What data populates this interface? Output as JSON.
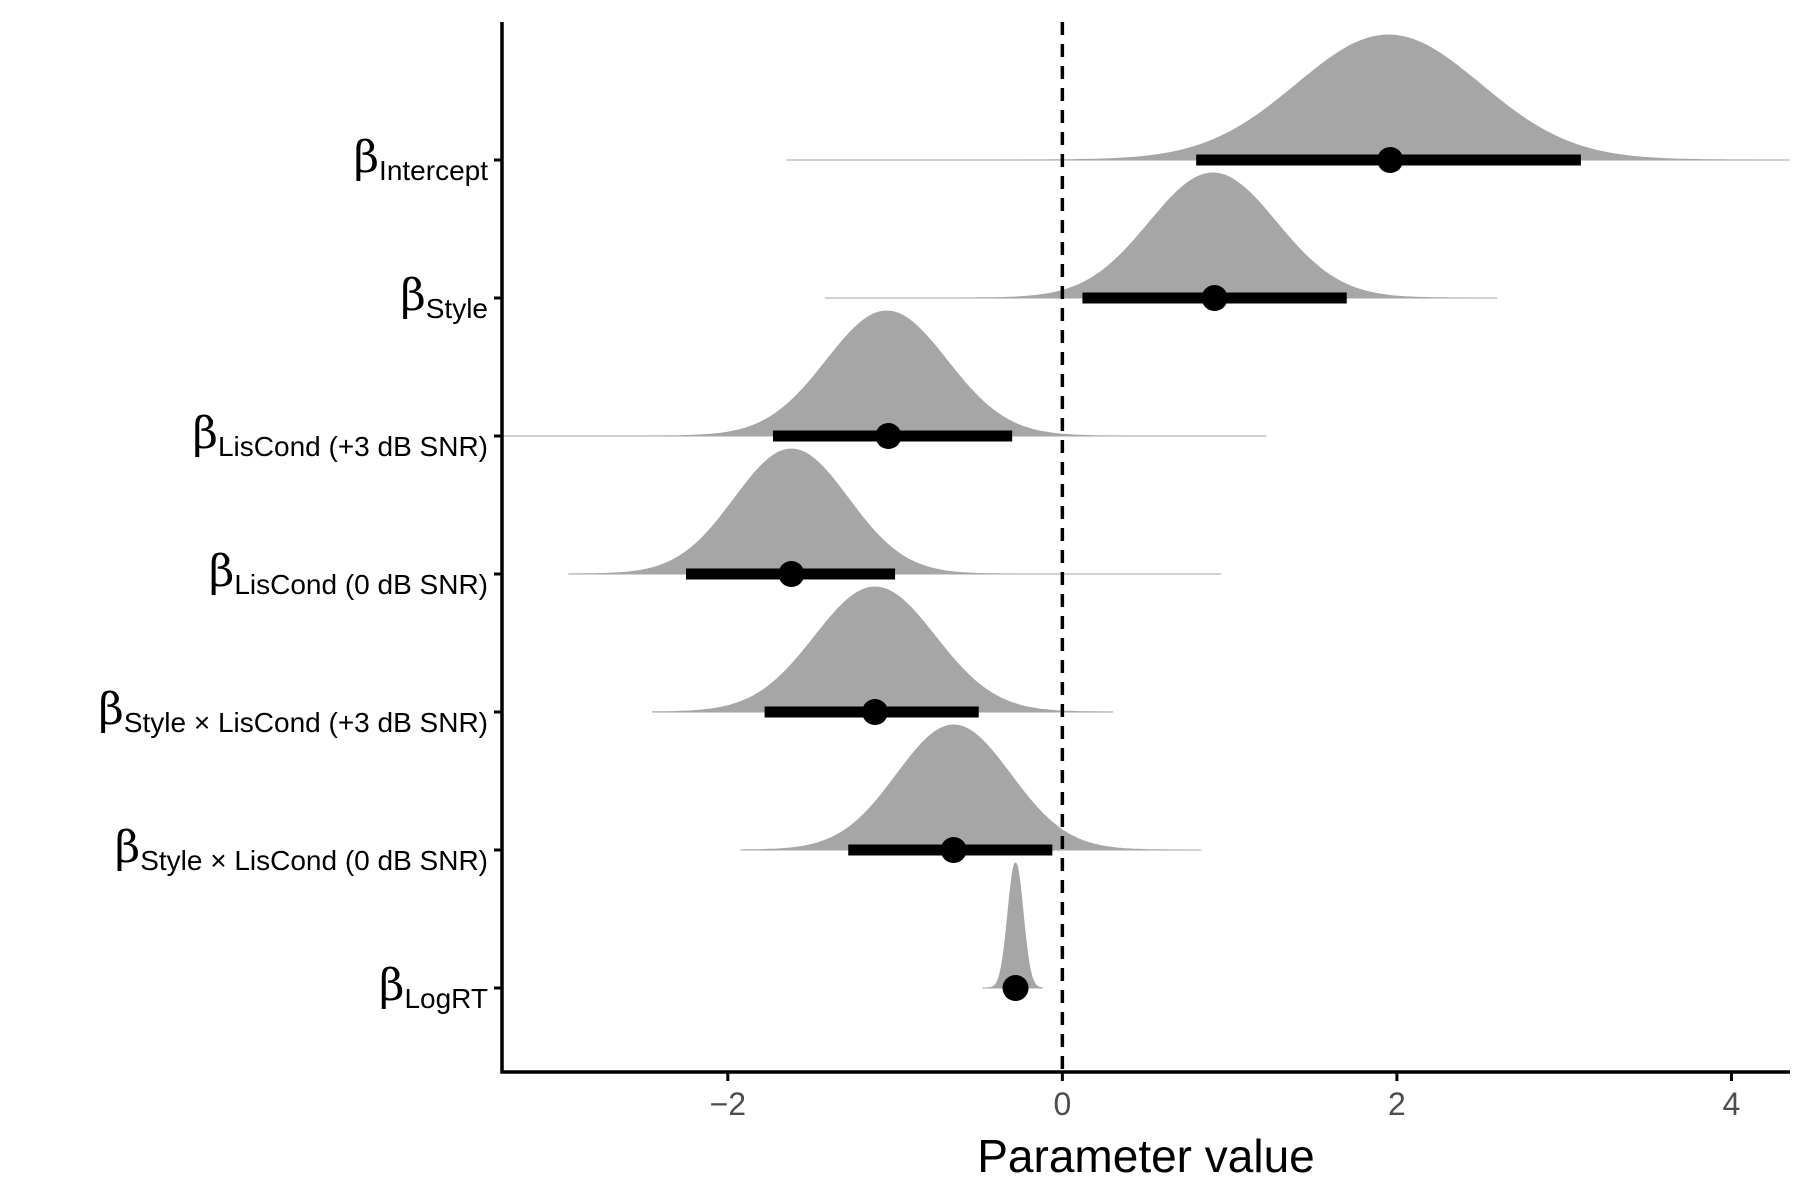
{
  "chart_data": {
    "type": "density-interval",
    "xlabel": "Parameter value",
    "xlim": [
      -3.35,
      4.35
    ],
    "xticks": [
      -2,
      0,
      2,
      4
    ],
    "xtick_labels": [
      "−2",
      "0",
      "2",
      "4"
    ],
    "reference_line": 0,
    "grid": false,
    "colors": {
      "density": "#a6a6a6",
      "interval": "#000000",
      "axis": "#000000"
    },
    "parameters": [
      {
        "symbol": "β",
        "subscript": "Intercept",
        "mean": 1.95,
        "sd": 0.55,
        "median": 1.96,
        "ci_low": 0.8,
        "ci_high": 3.1,
        "range_low": -1.65,
        "range_high": 4.35
      },
      {
        "symbol": "β",
        "subscript": "Style",
        "mean": 0.9,
        "sd": 0.38,
        "median": 0.91,
        "ci_low": 0.12,
        "ci_high": 1.7,
        "range_low": -1.42,
        "range_high": 2.6
      },
      {
        "symbol": "β",
        "subscript": "LisCond (+3 dB SNR)",
        "mean": -1.05,
        "sd": 0.36,
        "median": -1.04,
        "ci_low": -1.73,
        "ci_high": -0.3,
        "range_low": -3.35,
        "range_high": 1.22
      },
      {
        "symbol": "β",
        "subscript": "LisCond (0 dB SNR)",
        "mean": -1.62,
        "sd": 0.34,
        "median": -1.62,
        "ci_low": -2.25,
        "ci_high": -1.0,
        "range_low": -2.95,
        "range_high": 0.95
      },
      {
        "symbol": "β",
        "subscript": "Style × LisCond (+3 dB SNR)",
        "mean": -1.12,
        "sd": 0.36,
        "median": -1.12,
        "ci_low": -1.78,
        "ci_high": -0.5,
        "range_low": -2.45,
        "range_high": 0.3
      },
      {
        "symbol": "β",
        "subscript": "Style × LisCond (0 dB SNR)",
        "mean": -0.65,
        "sd": 0.34,
        "median": -0.65,
        "ci_low": -1.28,
        "ci_high": -0.06,
        "range_low": -1.92,
        "range_high": 0.83
      },
      {
        "symbol": "β",
        "subscript": "LogRT",
        "mean": -0.28,
        "sd": 0.045,
        "median": -0.28,
        "ci_low": -0.34,
        "ci_high": -0.22,
        "range_low": -0.48,
        "range_high": -0.12
      }
    ]
  }
}
